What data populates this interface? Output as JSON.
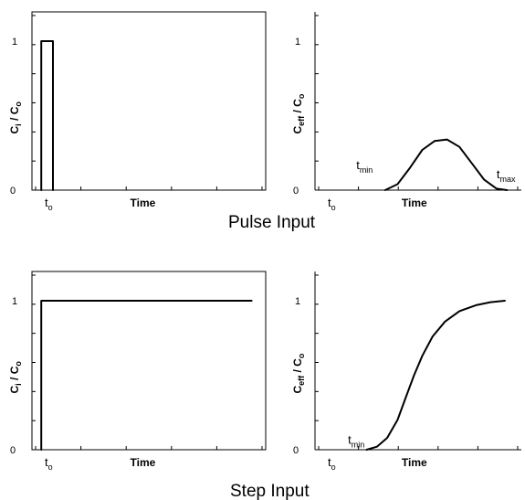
{
  "captions": {
    "pulse": "Pulse Input",
    "step": "Step Input"
  },
  "chart_data": [
    {
      "id": "pulse-input-concentration",
      "type": "line",
      "xlabel": "Time",
      "ylabel_main": "C",
      "ylabel_sub": "i",
      "ylabel_rest": " / C",
      "ylabel_rest_sub": "o",
      "ylim": [
        0,
        1
      ],
      "yticks": [
        "0",
        "1"
      ],
      "x_marker": {
        "main": "t",
        "sub": "o"
      },
      "series": [
        {
          "x": [
            0.04,
            0.04,
            0.09,
            0.09
          ],
          "y": [
            0,
            1,
            1,
            0
          ]
        }
      ]
    },
    {
      "id": "pulse-effluent-concentration",
      "type": "line",
      "xlabel": "Time",
      "ylabel_main": "C",
      "ylabel_sub": "eff",
      "ylabel_rest": " / C",
      "ylabel_rest_sub": "o",
      "ylim": [
        0,
        1
      ],
      "yticks": [
        "0",
        "1"
      ],
      "x_marker": {
        "main": "t",
        "sub": "o"
      },
      "annotations": [
        {
          "main": "t",
          "sub": "min",
          "x": 0.2,
          "y": 0.14
        },
        {
          "main": "t",
          "sub": "max",
          "x": 0.88,
          "y": 0.08
        }
      ],
      "series": [
        {
          "x": [
            0.34,
            0.4,
            0.46,
            0.52,
            0.58,
            0.64,
            0.7,
            0.76,
            0.82,
            0.88,
            0.93
          ],
          "y": [
            0.0,
            0.04,
            0.15,
            0.27,
            0.33,
            0.34,
            0.29,
            0.18,
            0.07,
            0.01,
            0.0
          ]
        }
      ]
    },
    {
      "id": "step-input-concentration",
      "type": "line",
      "xlabel": "Time",
      "ylabel_main": "C",
      "ylabel_sub": "i",
      "ylabel_rest": " / C",
      "ylabel_rest_sub": "o",
      "ylim": [
        0,
        1
      ],
      "yticks": [
        "0",
        "1"
      ],
      "x_marker": {
        "main": "t",
        "sub": "o"
      },
      "series": [
        {
          "x": [
            0.04,
            0.04,
            0.94
          ],
          "y": [
            0,
            1,
            1
          ]
        }
      ]
    },
    {
      "id": "step-effluent-concentration",
      "type": "line",
      "xlabel": "Time",
      "ylabel_main": "C",
      "ylabel_sub": "eff",
      "ylabel_rest": " / C",
      "ylabel_rest_sub": "o",
      "ylim": [
        0,
        1
      ],
      "yticks": [
        "0",
        "1"
      ],
      "x_marker": {
        "main": "t",
        "sub": "o"
      },
      "annotations": [
        {
          "main": "t",
          "sub": "min",
          "x": 0.16,
          "y": 0.04
        }
      ],
      "series": [
        {
          "x": [
            0.25,
            0.3,
            0.35,
            0.4,
            0.44,
            0.48,
            0.52,
            0.57,
            0.63,
            0.7,
            0.78,
            0.85,
            0.92
          ],
          "y": [
            0.0,
            0.02,
            0.08,
            0.2,
            0.35,
            0.5,
            0.63,
            0.76,
            0.86,
            0.93,
            0.97,
            0.99,
            1.0
          ]
        }
      ]
    }
  ]
}
